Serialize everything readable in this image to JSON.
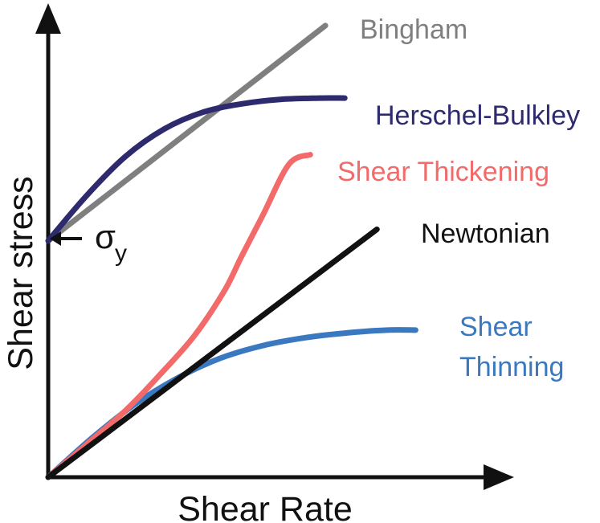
{
  "chart_data": {
    "type": "line",
    "xlabel": "Shear Rate",
    "ylabel": "Shear stress",
    "yield_label": {
      "symbol": "σ",
      "subscript": "y"
    },
    "axis_color": "#111111",
    "xlim": [
      0,
      10
    ],
    "ylim": [
      0,
      10
    ],
    "grid": false,
    "legend": "none",
    "series": [
      {
        "name": "Bingham",
        "color": "#7f7f7f",
        "x": [
          0,
          6.45
        ],
        "y": [
          5.35,
          10.22
        ]
      },
      {
        "name": "Herschel-Bulkley",
        "color": "#2e2a6e",
        "x": [
          0,
          0.9,
          1.8,
          2.7,
          3.6,
          4.5,
          5.4,
          6.3,
          6.9
        ],
        "y": [
          5.35,
          6.38,
          7.26,
          7.88,
          8.26,
          8.45,
          8.55,
          8.58,
          8.58
        ]
      },
      {
        "name": "Shear Thickening",
        "color": "#f26a6a",
        "x": [
          0,
          0.9,
          1.8,
          2.6,
          3.4,
          4.1,
          4.5,
          5.0,
          5.6,
          6.1
        ],
        "y": [
          0,
          0.75,
          1.51,
          2.32,
          3.2,
          4.22,
          5.0,
          5.94,
          7.08,
          7.3
        ]
      },
      {
        "name": "Newtonian",
        "color": "#111111",
        "x": [
          0,
          7.65
        ],
        "y": [
          0,
          5.61
        ]
      },
      {
        "name": "Shear Thinning",
        "color": "#3a78c0",
        "x": [
          0,
          1.0,
          2.0,
          3.0,
          4.0,
          5.0,
          6.0,
          7.0,
          7.9,
          8.55
        ],
        "y": [
          0,
          0.87,
          1.64,
          2.24,
          2.69,
          2.98,
          3.16,
          3.27,
          3.33,
          3.33
        ]
      }
    ]
  }
}
